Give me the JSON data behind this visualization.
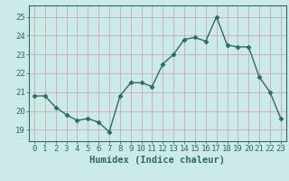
{
  "x": [
    0,
    1,
    2,
    3,
    4,
    5,
    6,
    7,
    8,
    9,
    10,
    11,
    12,
    13,
    14,
    15,
    16,
    17,
    18,
    19,
    20,
    21,
    22,
    23
  ],
  "y": [
    20.8,
    20.8,
    20.2,
    19.8,
    19.5,
    19.6,
    19.4,
    18.9,
    20.8,
    21.5,
    21.5,
    21.3,
    22.5,
    23.0,
    23.8,
    23.9,
    23.7,
    25.0,
    23.5,
    23.4,
    23.4,
    21.8,
    21.0,
    19.6
  ],
  "line_color": "#2e6b5e",
  "marker": "D",
  "marker_size": 2.5,
  "linewidth": 1.0,
  "bg_color": "#cceaea",
  "grid_color": "#c9a0a0",
  "xlabel": "Humidex (Indice chaleur)",
  "xlabel_fontsize": 7.5,
  "xlabel_color": "#2e6b5e",
  "ylabel_ticks": [
    19,
    20,
    21,
    22,
    23,
    24,
    25
  ],
  "ylim": [
    18.4,
    25.6
  ],
  "xlim": [
    -0.5,
    23.5
  ],
  "xtick_labels": [
    "0",
    "1",
    "2",
    "3",
    "4",
    "5",
    "6",
    "7",
    "8",
    "9",
    "10",
    "11",
    "12",
    "13",
    "14",
    "15",
    "16",
    "17",
    "18",
    "19",
    "20",
    "21",
    "22",
    "23"
  ],
  "tick_color": "#2e6b5e",
  "tick_fontsize": 6.5
}
